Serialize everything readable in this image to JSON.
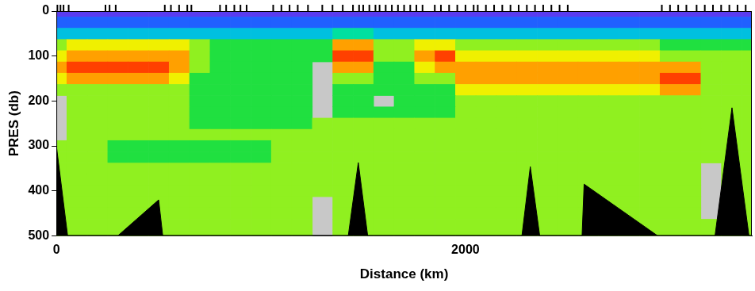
{
  "chart_data": {
    "type": "heatmap",
    "xlabel": "Distance (km)",
    "ylabel": "PRES (db)",
    "xlim": [
      0,
      3400
    ],
    "xticks": [
      0,
      2000
    ],
    "ylim": [
      0,
      500
    ],
    "yticks": [
      0,
      100,
      200,
      300,
      400,
      500
    ],
    "grid": false,
    "zlim": [
      0,
      10
    ],
    "x": [
      0,
      100,
      200,
      300,
      400,
      500,
      600,
      700,
      800,
      900,
      1000,
      1100,
      1200,
      1300,
      1400,
      1500,
      1600,
      1700,
      1800,
      1900,
      2000,
      2100,
      2200,
      2300,
      2400,
      2500,
      2600,
      2700,
      2800,
      2900,
      3000,
      3100,
      3200,
      3300,
      3400
    ],
    "y": [
      0,
      25,
      50,
      75,
      100,
      125,
      150,
      175,
      200,
      225,
      250,
      275,
      300,
      325,
      350,
      375,
      400,
      425,
      450,
      475,
      500
    ],
    "cells": [
      [
        1,
        1,
        1,
        1,
        1,
        1,
        1,
        1,
        1,
        1,
        1,
        1,
        1,
        1,
        1,
        1,
        1,
        1,
        1,
        1,
        1,
        1,
        1,
        1,
        1,
        1,
        1,
        1,
        1,
        1,
        1,
        1,
        1,
        1,
        1
      ],
      [
        2,
        2,
        2,
        2,
        2,
        2,
        2,
        2,
        2,
        2,
        2,
        2,
        2,
        2,
        2,
        2,
        2,
        2,
        2,
        2,
        2,
        2,
        2,
        2,
        2,
        2,
        2,
        2,
        2,
        2,
        2,
        2,
        2,
        2,
        2
      ],
      [
        3,
        3,
        3,
        3,
        3,
        3,
        3,
        3,
        3,
        3,
        3,
        3,
        3,
        3,
        4,
        4,
        3,
        3,
        3,
        3,
        3,
        3,
        3,
        3,
        3,
        3,
        3,
        3,
        3,
        3,
        3,
        3,
        3,
        3,
        3
      ],
      [
        6,
        7,
        7,
        7,
        7,
        7,
        7,
        6,
        5,
        5,
        5,
        5,
        5,
        5,
        8,
        8,
        6,
        6,
        7,
        7,
        6,
        6,
        6,
        6,
        6,
        6,
        6,
        6,
        6,
        6,
        5,
        5,
        5,
        5,
        5
      ],
      [
        7,
        8,
        8,
        8,
        8,
        8,
        8,
        6,
        5,
        5,
        5,
        5,
        5,
        5,
        9,
        9,
        6,
        6,
        8,
        9,
        7,
        7,
        7,
        7,
        7,
        7,
        7,
        7,
        7,
        7,
        6,
        6,
        6,
        6,
        6
      ],
      [
        8,
        9,
        9,
        9,
        9,
        9,
        8,
        6,
        5,
        5,
        5,
        5,
        5,
        null,
        8,
        8,
        5,
        5,
        7,
        8,
        8,
        8,
        8,
        8,
        8,
        8,
        8,
        8,
        8,
        8,
        8,
        8,
        6,
        6,
        6
      ],
      [
        7,
        8,
        8,
        8,
        8,
        8,
        7,
        5,
        5,
        5,
        5,
        5,
        5,
        null,
        6,
        6,
        5,
        5,
        6,
        6,
        8,
        8,
        8,
        8,
        8,
        8,
        8,
        8,
        8,
        8,
        9,
        9,
        6,
        6,
        6
      ],
      [
        6,
        6,
        6,
        6,
        6,
        6,
        6,
        5,
        5,
        5,
        5,
        5,
        5,
        null,
        5,
        5,
        5,
        5,
        5,
        5,
        7,
        7,
        7,
        7,
        7,
        7,
        7,
        7,
        7,
        7,
        8,
        8,
        6,
        6,
        6
      ],
      [
        null,
        6,
        6,
        6,
        6,
        6,
        6,
        5,
        5,
        5,
        5,
        5,
        5,
        null,
        5,
        5,
        null,
        5,
        5,
        5,
        6,
        6,
        6,
        6,
        6,
        6,
        6,
        6,
        6,
        6,
        6,
        6,
        6,
        6,
        6
      ],
      [
        null,
        6,
        6,
        6,
        6,
        6,
        6,
        5,
        5,
        5,
        5,
        5,
        5,
        null,
        5,
        5,
        5,
        5,
        5,
        5,
        6,
        6,
        6,
        6,
        6,
        6,
        6,
        6,
        6,
        6,
        6,
        6,
        6,
        6,
        6
      ],
      [
        null,
        6,
        6,
        6,
        6,
        6,
        6,
        5,
        5,
        5,
        5,
        5,
        5,
        6,
        6,
        6,
        6,
        6,
        6,
        6,
        6,
        6,
        6,
        6,
        6,
        6,
        6,
        6,
        6,
        6,
        6,
        6,
        6,
        6,
        6
      ],
      [
        null,
        6,
        6,
        6,
        6,
        6,
        6,
        6,
        6,
        6,
        6,
        6,
        6,
        6,
        6,
        6,
        6,
        6,
        6,
        6,
        6,
        6,
        6,
        6,
        6,
        6,
        6,
        6,
        6,
        6,
        6,
        6,
        6,
        6,
        6
      ],
      [
        6,
        6,
        6,
        5,
        5,
        5,
        5,
        5,
        5,
        5,
        5,
        6,
        6,
        6,
        6,
        6,
        6,
        6,
        6,
        6,
        6,
        6,
        6,
        6,
        6,
        6,
        6,
        6,
        6,
        6,
        6,
        6,
        6,
        6,
        6
      ],
      [
        6,
        6,
        6,
        5,
        5,
        5,
        5,
        5,
        5,
        5,
        5,
        6,
        6,
        6,
        6,
        6,
        6,
        6,
        6,
        6,
        6,
        6,
        6,
        6,
        6,
        6,
        6,
        6,
        6,
        6,
        6,
        6,
        6,
        6,
        6
      ],
      [
        6,
        6,
        6,
        6,
        6,
        6,
        6,
        6,
        6,
        6,
        6,
        6,
        6,
        6,
        6,
        6,
        6,
        6,
        6,
        6,
        6,
        6,
        6,
        6,
        6,
        6,
        6,
        6,
        6,
        6,
        6,
        6,
        null,
        6,
        6
      ],
      [
        6,
        6,
        6,
        6,
        6,
        6,
        6,
        6,
        6,
        6,
        6,
        6,
        6,
        6,
        6,
        6,
        6,
        6,
        6,
        6,
        6,
        6,
        6,
        6,
        6,
        6,
        6,
        6,
        6,
        6,
        6,
        6,
        null,
        6,
        6
      ],
      [
        6,
        6,
        6,
        6,
        6,
        6,
        6,
        6,
        6,
        6,
        6,
        6,
        6,
        6,
        6,
        6,
        6,
        6,
        6,
        6,
        6,
        6,
        6,
        6,
        6,
        6,
        6,
        6,
        6,
        6,
        6,
        6,
        null,
        6,
        6
      ],
      [
        6,
        6,
        6,
        6,
        6,
        6,
        6,
        6,
        6,
        6,
        6,
        6,
        6,
        null,
        6,
        6,
        6,
        6,
        6,
        6,
        6,
        6,
        6,
        6,
        6,
        6,
        6,
        6,
        6,
        6,
        6,
        6,
        null,
        6,
        6
      ],
      [
        6,
        6,
        6,
        6,
        6,
        6,
        6,
        6,
        6,
        6,
        6,
        6,
        6,
        null,
        6,
        6,
        6,
        6,
        6,
        6,
        6,
        6,
        6,
        6,
        6,
        6,
        6,
        6,
        6,
        6,
        6,
        6,
        null,
        6,
        6
      ],
      [
        6,
        6,
        6,
        6,
        6,
        6,
        6,
        6,
        6,
        6,
        6,
        6,
        6,
        null,
        6,
        6,
        6,
        6,
        6,
        6,
        6,
        6,
        6,
        6,
        6,
        6,
        6,
        6,
        6,
        6,
        6,
        6,
        6,
        6,
        6
      ],
      [
        6,
        6,
        6,
        6,
        6,
        6,
        6,
        6,
        6,
        6,
        6,
        6,
        6,
        null,
        6,
        6,
        6,
        6,
        6,
        6,
        6,
        6,
        6,
        6,
        6,
        6,
        6,
        6,
        6,
        6,
        6,
        6,
        6,
        6,
        6
      ]
    ],
    "bottom": {
      "x": [
        0,
        55,
        300,
        500,
        520,
        1427,
        1476,
        1522,
        2276,
        2317,
        2363,
        2570,
        2580,
        2940,
        3220,
        3303,
        3386,
        3400
      ],
      "pres": [
        300,
        500,
        500,
        420,
        500,
        500,
        337,
        500,
        500,
        346,
        500,
        500,
        385,
        500,
        500,
        215,
        500,
        500
      ]
    },
    "stations": [
      5,
      20,
      35,
      60,
      240,
      260,
      290,
      530,
      560,
      600,
      640,
      660,
      800,
      830,
      870,
      900,
      930,
      1060,
      1100,
      1140,
      1180,
      1230,
      1300,
      1350,
      1400,
      1450,
      1480,
      1500,
      1530,
      1560,
      1580,
      1610,
      1640,
      1670,
      1700,
      1730,
      1760,
      1790,
      1850,
      1880,
      1920,
      1960,
      2000,
      2040,
      2060,
      2100,
      2140,
      2180,
      2220,
      2260,
      2300,
      2340,
      2380,
      2420,
      2460,
      2500,
      2960,
      3000,
      3040,
      3080,
      3130,
      3170,
      3210,
      3250,
      3290,
      3330,
      3370
    ]
  }
}
